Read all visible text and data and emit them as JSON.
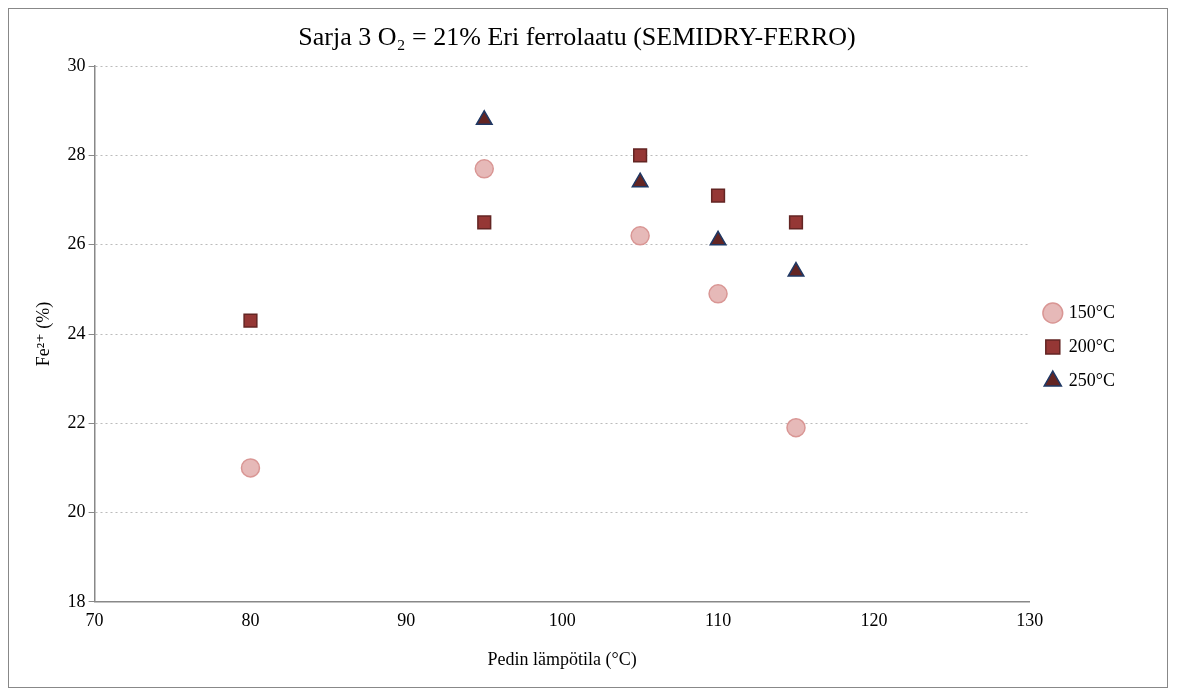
{
  "chart_data": {
    "type": "scatter",
    "title": "Sarja 3 O₂ = 21% Eri ferrolaatu (SEMIDRY-FERRO)",
    "xlabel": "Pedin lämpötila (°C)",
    "ylabel": "Fe²⁺ (%)",
    "series": [
      {
        "name": "150°C",
        "color": "#e6b9b8",
        "marker": "circle",
        "x": [
          80,
          95,
          105,
          110,
          115
        ],
        "values": [
          21.0,
          27.7,
          26.2,
          24.9,
          21.9
        ]
      },
      {
        "name": "200°C",
        "color": "#953735",
        "marker": "square",
        "x": [
          80,
          95,
          105,
          110,
          115
        ],
        "values": [
          24.3,
          26.5,
          28.0,
          27.1,
          26.5
        ]
      },
      {
        "name": "250°C",
        "color": "#632523",
        "marker": "triangle",
        "x": [
          95,
          105,
          110,
          115
        ],
        "values": [
          28.8,
          27.4,
          26.1,
          25.4
        ]
      }
    ],
    "xlim": [
      70,
      130
    ],
    "xticks": [
      70,
      80,
      90,
      100,
      110,
      120,
      130
    ],
    "ylim": [
      18,
      30
    ],
    "yticks": [
      18,
      20,
      22,
      24,
      26,
      28,
      30
    ],
    "grid": "y",
    "legend": "right"
  }
}
